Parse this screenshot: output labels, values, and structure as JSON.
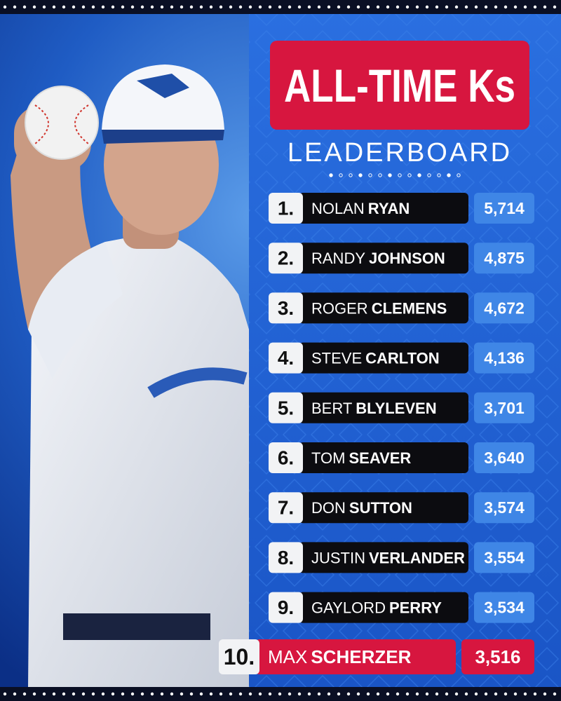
{
  "header": {
    "title": "ALL-TIME Ks",
    "subtitle": "LEADERBOARD"
  },
  "table": {
    "rows": [
      [
        "1.",
        "NOLAN",
        "RYAN",
        "5,714"
      ],
      [
        "2.",
        "RANDY",
        "JOHNSON",
        "4,875"
      ],
      [
        "3.",
        "ROGER",
        "CLEMENS",
        "4,672"
      ],
      [
        "4.",
        "STEVE",
        "CARLTON",
        "4,136"
      ],
      [
        "5.",
        "BERT",
        "BLYLEVEN",
        "3,701"
      ],
      [
        "6.",
        "TOM",
        "SEAVER",
        "3,640"
      ],
      [
        "7.",
        "DON",
        "SUTTON",
        "3,574"
      ],
      [
        "8.",
        "JUSTIN",
        "VERLANDER",
        "3,554"
      ],
      [
        "9.",
        "GAYLORD",
        "PERRY",
        "3,534"
      ],
      [
        "10.",
        "MAX",
        "SCHERZER",
        "3,516"
      ]
    ]
  }
}
